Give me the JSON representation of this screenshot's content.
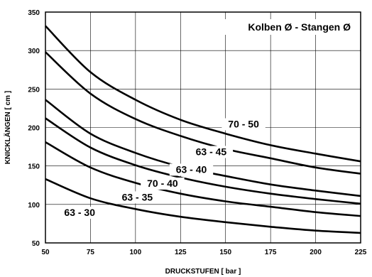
{
  "chart_data": {
    "type": "line",
    "title": "",
    "legend_title": "Kolben Ø - Stangen Ø",
    "xlabel": "DRUCKSTUFEN [ bar ]",
    "ylabel": "KNICKLÄNGEN [ cm ]",
    "xlim": [
      50,
      225
    ],
    "ylim": [
      50,
      350
    ],
    "xticks": [
      50,
      75,
      100,
      125,
      150,
      175,
      200,
      225
    ],
    "yticks": [
      50,
      100,
      150,
      200,
      250,
      300,
      350
    ],
    "grid": true,
    "x": [
      50,
      75,
      100,
      125,
      150,
      175,
      200,
      225
    ],
    "series": [
      {
        "name": "70 - 50",
        "values": [
          332,
          272,
          236,
          210,
          192,
          177,
          166,
          156
        ],
        "label_at": [
          160,
          200
        ]
      },
      {
        "name": "63 - 45",
        "values": [
          298,
          244,
          211,
          189,
          172,
          160,
          148,
          140
        ],
        "label_at": [
          142,
          164
        ]
      },
      {
        "name": "63 - 40",
        "values": [
          236,
          192,
          167,
          149,
          137,
          126,
          118,
          111
        ],
        "label_at": [
          131,
          141
        ]
      },
      {
        "name": "70 - 40",
        "values": [
          212,
          174,
          151,
          135,
          123,
          114,
          107,
          101
        ],
        "label_at": [
          115,
          123
        ]
      },
      {
        "name": "63 - 35",
        "values": [
          181,
          148,
          128,
          114,
          104,
          97,
          90,
          85
        ],
        "label_at": [
          101,
          105
        ]
      },
      {
        "name": "63 - 30",
        "values": [
          133,
          108,
          94,
          84,
          77,
          71,
          66,
          63
        ],
        "label_at": [
          69,
          85
        ]
      }
    ]
  }
}
